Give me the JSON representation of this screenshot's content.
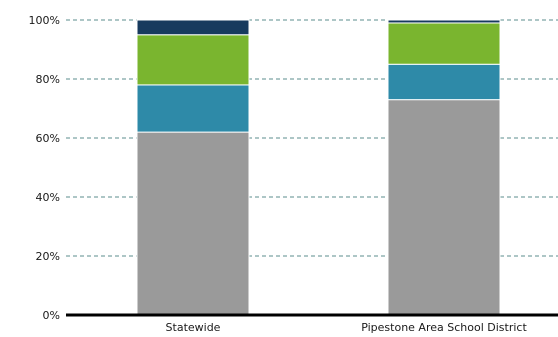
{
  "chart_data": {
    "type": "bar",
    "stacked": true,
    "categories": [
      "Statewide",
      "Pipestone Area School District"
    ],
    "series": [
      {
        "color": "#9a9a9a",
        "values": [
          62,
          73
        ]
      },
      {
        "color": "#2e8aa8",
        "values": [
          16,
          12
        ]
      },
      {
        "color": "#7ab52f",
        "values": [
          17,
          14
        ]
      },
      {
        "color": "#173a5e",
        "values": [
          5,
          1
        ]
      }
    ],
    "y_ticks": [
      0,
      20,
      40,
      60,
      80,
      100
    ],
    "y_tick_labels": [
      "0%",
      "20%",
      "40%",
      "60%",
      "80%",
      "100%"
    ],
    "ylim": [
      0,
      100
    ],
    "grid": true,
    "grid_style": "dashed",
    "grid_color": "#5b8c8c",
    "title": "",
    "xlabel": "",
    "ylabel": ""
  }
}
